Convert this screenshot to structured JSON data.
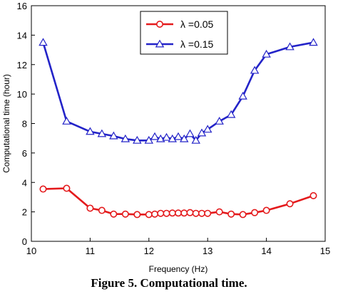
{
  "caption": "Figure 5.  Computational time.",
  "chart_data": {
    "type": "line",
    "xlabel": "Frequency (Hz)",
    "ylabel": "Computational time (hour)",
    "xlim": [
      10,
      15
    ],
    "ylim": [
      0,
      16
    ],
    "x_ticks": [
      "10",
      "11",
      "12",
      "13",
      "14",
      "15"
    ],
    "y_ticks": [
      "0",
      "2",
      "4",
      "6",
      "8",
      "10",
      "12",
      "14",
      "16"
    ],
    "grid": false,
    "legend_position": "top-center",
    "series": [
      {
        "name": "λ =0.05",
        "color": "#e41a1c",
        "marker": "circle",
        "points": [
          [
            10.2,
            3.55
          ],
          [
            10.6,
            3.6
          ],
          [
            11.0,
            2.25
          ],
          [
            11.2,
            2.1
          ],
          [
            11.4,
            1.85
          ],
          [
            11.6,
            1.85
          ],
          [
            11.8,
            1.82
          ],
          [
            12.0,
            1.82
          ],
          [
            12.1,
            1.85
          ],
          [
            12.2,
            1.9
          ],
          [
            12.3,
            1.9
          ],
          [
            12.4,
            1.92
          ],
          [
            12.5,
            1.92
          ],
          [
            12.6,
            1.92
          ],
          [
            12.7,
            1.95
          ],
          [
            12.8,
            1.9
          ],
          [
            12.9,
            1.9
          ],
          [
            13.0,
            1.9
          ],
          [
            13.2,
            2.0
          ],
          [
            13.4,
            1.85
          ],
          [
            13.6,
            1.82
          ],
          [
            13.8,
            1.95
          ],
          [
            14.0,
            2.1
          ],
          [
            14.4,
            2.55
          ],
          [
            14.8,
            3.1
          ]
        ]
      },
      {
        "name": "λ =0.15",
        "color": "#2323c8",
        "marker": "triangle",
        "points": [
          [
            10.2,
            13.5
          ],
          [
            10.6,
            8.15
          ],
          [
            11.0,
            7.45
          ],
          [
            11.2,
            7.3
          ],
          [
            11.4,
            7.15
          ],
          [
            11.6,
            6.95
          ],
          [
            11.8,
            6.85
          ],
          [
            12.0,
            6.85
          ],
          [
            12.1,
            7.1
          ],
          [
            12.2,
            6.95
          ],
          [
            12.3,
            7.05
          ],
          [
            12.4,
            6.95
          ],
          [
            12.5,
            7.1
          ],
          [
            12.6,
            6.95
          ],
          [
            12.7,
            7.3
          ],
          [
            12.8,
            6.85
          ],
          [
            12.9,
            7.35
          ],
          [
            13.0,
            7.6
          ],
          [
            13.2,
            8.15
          ],
          [
            13.4,
            8.6
          ],
          [
            13.6,
            9.85
          ],
          [
            13.8,
            11.6
          ],
          [
            14.0,
            12.7
          ],
          [
            14.4,
            13.2
          ],
          [
            14.8,
            13.5
          ]
        ]
      }
    ]
  }
}
